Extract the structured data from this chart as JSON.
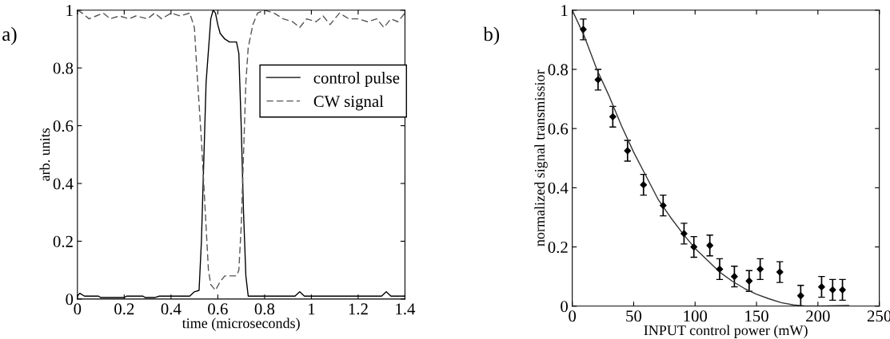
{
  "chart_data": [
    {
      "type": "line",
      "xlabel": "time (microseconds)",
      "ylabel": "arb. units",
      "annotations": [
        "a)"
      ],
      "xlim": [
        0,
        1.4
      ],
      "ylim": [
        0,
        1
      ],
      "xticks": [
        0,
        0.2,
        0.4,
        0.6,
        0.8,
        {
          "value": 1,
          "label": "1"
        },
        1.2,
        1.4
      ],
      "yticks": [
        0,
        0.2,
        0.4,
        0.6,
        0.8,
        {
          "value": 1,
          "label": "1"
        }
      ],
      "legend": "right",
      "grid": false,
      "series": [
        {
          "name": "control pulse",
          "color": "#000000",
          "line_style": "solid",
          "x": [
            0,
            0.01,
            0.03,
            0.05,
            0.09,
            0.1,
            0.2,
            0.21,
            0.28,
            0.29,
            0.33,
            0.35,
            0.48,
            0.5,
            0.52,
            0.53,
            0.55,
            0.57,
            0.58,
            0.59,
            0.6,
            0.61,
            0.63,
            0.65,
            0.67,
            0.68,
            0.69,
            0.7,
            0.71,
            0.72,
            0.73,
            0.8,
            0.93,
            0.95,
            0.97,
            1.0,
            1.3,
            1.32,
            1.34,
            1.4
          ],
          "values": [
            0.01,
            0.02,
            0.01,
            0.01,
            0.01,
            0.005,
            0.005,
            0.01,
            0.01,
            0.005,
            0.005,
            0.01,
            0.01,
            0.025,
            0.03,
            0.2,
            0.75,
            0.97,
            1.0,
            0.99,
            0.95,
            0.92,
            0.9,
            0.89,
            0.89,
            0.89,
            0.85,
            0.6,
            0.3,
            0.08,
            0.01,
            0.01,
            0.01,
            0.025,
            0.01,
            0.01,
            0.01,
            0.025,
            0.01,
            0.01
          ]
        },
        {
          "name": "CW signal",
          "color": "#555555",
          "line_style": "dashed",
          "x": [
            0,
            0.02,
            0.05,
            0.08,
            0.11,
            0.14,
            0.18,
            0.22,
            0.25,
            0.3,
            0.33,
            0.36,
            0.4,
            0.44,
            0.48,
            0.5,
            0.51,
            0.53,
            0.55,
            0.56,
            0.57,
            0.58,
            0.59,
            0.61,
            0.63,
            0.65,
            0.67,
            0.68,
            0.69,
            0.7,
            0.71,
            0.72,
            0.73,
            0.75,
            0.77,
            0.8,
            0.84,
            0.88,
            0.92,
            0.95,
            0.98,
            1.02,
            1.05,
            1.08,
            1.12,
            1.16,
            1.2,
            1.24,
            1.28,
            1.31,
            1.34,
            1.37,
            1.4
          ],
          "values": [
            1.0,
            0.99,
            0.97,
            0.98,
            0.99,
            0.97,
            0.98,
            0.97,
            0.98,
            0.97,
            0.99,
            0.97,
            0.99,
            0.98,
            0.99,
            0.94,
            0.8,
            0.55,
            0.25,
            0.1,
            0.05,
            0.04,
            0.03,
            0.06,
            0.08,
            0.08,
            0.08,
            0.08,
            0.1,
            0.25,
            0.5,
            0.75,
            0.87,
            0.95,
            0.99,
            1.0,
            0.99,
            0.97,
            0.96,
            0.94,
            0.97,
            0.96,
            0.98,
            0.95,
            0.99,
            0.97,
            0.97,
            0.96,
            0.97,
            0.94,
            0.97,
            0.96,
            0.99
          ]
        }
      ]
    },
    {
      "type": "scatter",
      "xlabel": "INPUT control power (mW)",
      "ylabel": "normalized signal transmissior",
      "annotations": [
        "b)"
      ],
      "xlim": [
        0,
        250
      ],
      "ylim": [
        0,
        1
      ],
      "xticks": [
        0,
        50,
        100,
        150,
        200,
        250
      ],
      "yticks": [
        0,
        0.2,
        0.4,
        0.6,
        0.8,
        {
          "value": 1,
          "label": "1"
        }
      ],
      "grid": false,
      "series": [
        {
          "type": "scatter",
          "color": "#000000",
          "marker": "diamond",
          "x": [
            9,
            21,
            33,
            45,
            58,
            74,
            91,
            99,
            112,
            120,
            132,
            144,
            153,
            169,
            186,
            203,
            212,
            220
          ],
          "values": [
            0.935,
            0.765,
            0.64,
            0.525,
            0.41,
            0.34,
            0.245,
            0.2,
            0.205,
            0.125,
            0.1,
            0.085,
            0.125,
            0.115,
            0.035,
            0.065,
            0.055,
            0.055
          ],
          "errors": [
            0.035,
            0.035,
            0.035,
            0.035,
            0.035,
            0.035,
            0.035,
            0.035,
            0.035,
            0.035,
            0.035,
            0.035,
            0.035,
            0.035,
            0.035,
            0.035,
            0.035,
            0.035
          ]
        },
        {
          "type": "line",
          "color": "#333333",
          "line_style": "solid",
          "x": [
            0,
            10,
            20,
            30,
            40,
            50,
            60,
            70,
            80,
            90,
            100,
            110,
            120,
            130,
            140,
            150,
            160,
            170,
            180,
            190,
            200,
            225
          ],
          "values": [
            1.0,
            0.91,
            0.8,
            0.71,
            0.61,
            0.52,
            0.44,
            0.36,
            0.3,
            0.245,
            0.195,
            0.155,
            0.115,
            0.085,
            0.06,
            0.04,
            0.025,
            0.012,
            0.004,
            0.0,
            0.0,
            0.002
          ]
        }
      ]
    }
  ]
}
